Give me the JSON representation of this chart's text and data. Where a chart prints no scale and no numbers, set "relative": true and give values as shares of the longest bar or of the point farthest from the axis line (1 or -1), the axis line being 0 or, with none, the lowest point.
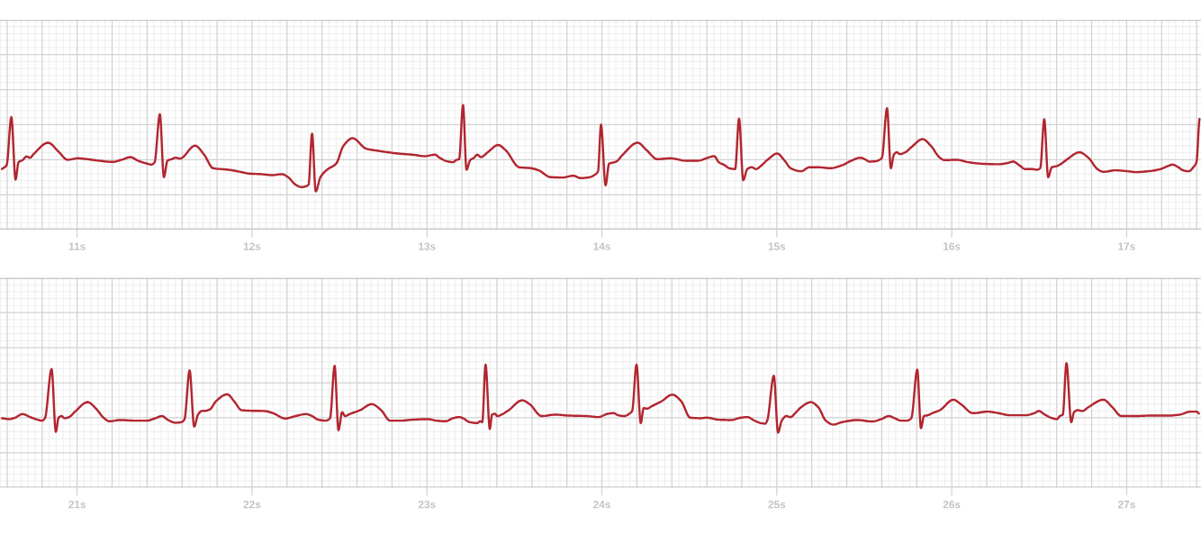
{
  "chart_data": [
    {
      "type": "line",
      "relative": true,
      "grid": true,
      "tick_labels": "x",
      "xlim": [
        10.559,
        17.425
      ],
      "xticks": [
        {
          "value": 11,
          "label": "11s"
        },
        {
          "value": 12,
          "label": "12s"
        },
        {
          "value": 13,
          "label": "13s"
        },
        {
          "value": 14,
          "label": "14s"
        },
        {
          "value": 15,
          "label": "15s"
        },
        {
          "value": 16,
          "label": "16s"
        },
        {
          "value": 17,
          "label": "17s"
        }
      ],
      "x": [
        10.565,
        10.585,
        10.597,
        10.624,
        10.648,
        10.665,
        10.688,
        10.71,
        10.731,
        10.751,
        10.834,
        10.894,
        10.945,
        11.005,
        11.057,
        11.125,
        11.202,
        11.254,
        11.305,
        11.348,
        11.4,
        11.425,
        11.443,
        11.473,
        11.496,
        11.516,
        11.54,
        11.563,
        11.588,
        11.674,
        11.726,
        11.777,
        11.863,
        11.932,
        11.983,
        12.052,
        12.112,
        12.172,
        12.206,
        12.249,
        12.283,
        12.309,
        12.323,
        12.343,
        12.364,
        12.391,
        12.429,
        12.481,
        12.523,
        12.575,
        12.652,
        12.721,
        12.849,
        12.918,
        12.986,
        13.046,
        13.072,
        13.115,
        13.149,
        13.166,
        13.184,
        13.206,
        13.226,
        13.247,
        13.269,
        13.287,
        13.309,
        13.347,
        13.407,
        13.45,
        13.527,
        13.595,
        13.638,
        13.707,
        13.775,
        13.836,
        13.878,
        13.93,
        13.964,
        13.978,
        13.995,
        14.021,
        14.041,
        14.059,
        14.084,
        14.119,
        14.204,
        14.256,
        14.316,
        14.393,
        14.479,
        14.547,
        14.616,
        14.642,
        14.668,
        14.702,
        14.728,
        14.762,
        14.784,
        14.808,
        14.831,
        14.856,
        14.882,
        14.908,
        14.951,
        15.002,
        15.045,
        15.079,
        15.139,
        15.186,
        15.237,
        15.306,
        15.374,
        15.426,
        15.477,
        15.503,
        15.529,
        15.563,
        15.584,
        15.601,
        15.63,
        15.652,
        15.669,
        15.686,
        15.704,
        15.735,
        15.769,
        15.834,
        15.88,
        15.932,
        15.958,
        16.026,
        16.095,
        16.163,
        16.266,
        16.318,
        16.352,
        16.386,
        16.421,
        16.455,
        16.489,
        16.506,
        16.529,
        16.551,
        16.572,
        16.601,
        16.627,
        16.661,
        16.73,
        16.781,
        16.833,
        16.867,
        16.935,
        17.004,
        17.056,
        17.124,
        17.193,
        17.236,
        17.261,
        17.296,
        17.321,
        17.356,
        17.381,
        17.399,
        17.418
      ],
      "series": [
        {
          "color": "#b22530",
          "values": [
            0.258,
            0.279,
            0.303,
            0.861,
            0.136,
            0.338,
            0.362,
            0.404,
            0.39,
            0.432,
            0.564,
            0.46,
            0.366,
            0.383,
            0.373,
            0.355,
            0.341,
            0.366,
            0.397,
            0.355,
            0.321,
            0.31,
            0.338,
            0.895,
            0.164,
            0.355,
            0.373,
            0.39,
            0.38,
            0.53,
            0.425,
            0.268,
            0.251,
            0.226,
            0.206,
            0.199,
            0.188,
            0.199,
            0.164,
            0.077,
            0.049,
            0.059,
            0.077,
            0.669,
            0,
            0.164,
            0.251,
            0.321,
            0.53,
            0.617,
            0.495,
            0.47,
            0.436,
            0.425,
            0.408,
            0.425,
            0.39,
            0.348,
            0.338,
            0.362,
            0.373,
            1,
            0.251,
            0.362,
            0.39,
            0.425,
            0.397,
            0.453,
            0.537,
            0.477,
            0.279,
            0.268,
            0.244,
            0.164,
            0.16,
            0.181,
            0.153,
            0.164,
            0.199,
            0.233,
            0.774,
            0.07,
            0.321,
            0.331,
            0.348,
            0.425,
            0.564,
            0.477,
            0.373,
            0.383,
            0.355,
            0.355,
            0.397,
            0.408,
            0.338,
            0.303,
            0.268,
            0.258,
            0.843,
            0.129,
            0.258,
            0.279,
            0.258,
            0.293,
            0.373,
            0.439,
            0.355,
            0.268,
            0.233,
            0.279,
            0.279,
            0.268,
            0.303,
            0.355,
            0.39,
            0.373,
            0.345,
            0.348,
            0.362,
            0.39,
            0.965,
            0.268,
            0.425,
            0.453,
            0.432,
            0.453,
            0.512,
            0.606,
            0.53,
            0.39,
            0.362,
            0.366,
            0.338,
            0.321,
            0.314,
            0.328,
            0.345,
            0.303,
            0.258,
            0.258,
            0.251,
            0.268,
            0.836,
            0.164,
            0.279,
            0.293,
            0.321,
            0.373,
            0.453,
            0.39,
            0.258,
            0.226,
            0.244,
            0.233,
            0.223,
            0.233,
            0.258,
            0.293,
            0.31,
            0.279,
            0.244,
            0.233,
            0.279,
            0.338,
            0.85
          ]
        }
      ]
    },
    {
      "type": "line",
      "relative": true,
      "grid": true,
      "tick_labels": "x",
      "xlim": [
        20.559,
        27.425
      ],
      "xticks": [
        {
          "value": 21,
          "label": "21s"
        },
        {
          "value": 22,
          "label": "22s"
        },
        {
          "value": 23,
          "label": "23s"
        },
        {
          "value": 24,
          "label": "24s"
        },
        {
          "value": 25,
          "label": "25s"
        },
        {
          "value": 26,
          "label": "26s"
        },
        {
          "value": 27,
          "label": "27s"
        }
      ],
      "x": [
        20.565,
        20.611,
        20.645,
        20.688,
        20.731,
        20.774,
        20.799,
        20.816,
        20.854,
        20.878,
        20.894,
        20.911,
        20.928,
        20.954,
        20.988,
        21.06,
        21.108,
        21.151,
        21.185,
        21.245,
        21.331,
        21.4,
        21.443,
        21.485,
        21.52,
        21.563,
        21.597,
        21.614,
        21.643,
        21.669,
        21.691,
        21.712,
        21.734,
        21.76,
        21.794,
        21.858,
        21.897,
        21.94,
        22.0,
        22.069,
        22.12,
        22.189,
        22.249,
        22.309,
        22.343,
        22.378,
        22.42,
        22.446,
        22.472,
        22.494,
        22.515,
        22.532,
        22.558,
        22.618,
        22.683,
        22.738,
        22.789,
        22.849,
        22.918,
        23.003,
        23.055,
        23.106,
        23.149,
        23.184,
        23.209,
        23.244,
        23.287,
        23.304,
        23.316,
        23.335,
        23.359,
        23.372,
        23.389,
        23.401,
        23.432,
        23.467,
        23.544,
        23.587,
        23.655,
        23.733,
        23.81,
        23.913,
        23.981,
        24.033,
        24.067,
        24.093,
        24.127,
        24.161,
        24.173,
        24.198,
        24.222,
        24.239,
        24.256,
        24.29,
        24.342,
        24.402,
        24.453,
        24.505,
        24.565,
        24.599,
        24.668,
        24.736,
        24.796,
        24.831,
        24.873,
        24.908,
        24.933,
        24.945,
        24.983,
        25.007,
        25.028,
        25.054,
        25.079,
        25.105,
        25.139,
        25.194,
        25.237,
        25.28,
        25.323,
        25.374,
        25.46,
        25.546,
        25.597,
        25.64,
        25.674,
        25.709,
        25.743,
        25.769,
        25.803,
        25.824,
        25.841,
        25.863,
        25.889,
        25.932,
        26.009,
        26.052,
        26.121,
        26.206,
        26.266,
        26.335,
        26.421,
        26.472,
        26.498,
        26.532,
        26.567,
        26.601,
        26.618,
        26.635,
        26.656,
        26.683,
        26.699,
        26.721,
        26.747,
        26.781,
        26.867,
        26.918,
        26.97,
        27.038,
        27.141,
        27.244,
        27.304,
        27.364,
        27.399,
        27.418
      ],
      "series": [
        {
          "color": "#b22530",
          "values": [
            0.207,
            0.194,
            0.215,
            0.267,
            0.224,
            0.186,
            0.172,
            0.207,
            0.915,
            0.012,
            0.215,
            0.238,
            0.207,
            0.224,
            0.302,
            0.439,
            0.345,
            0.215,
            0.163,
            0.181,
            0.172,
            0.172,
            0.203,
            0.238,
            0.181,
            0.142,
            0.151,
            0.194,
            0.897,
            0.087,
            0.259,
            0.311,
            0.314,
            0.337,
            0.453,
            0.552,
            0.453,
            0.323,
            0.314,
            0.311,
            0.28,
            0.203,
            0.238,
            0.267,
            0.238,
            0.186,
            0.172,
            0.207,
            0.962,
            0.035,
            0.293,
            0.238,
            0.267,
            0.323,
            0.41,
            0.323,
            0.172,
            0.172,
            0.186,
            0.194,
            0.172,
            0.163,
            0.207,
            0.224,
            0.203,
            0.151,
            0.137,
            0.163,
            0.151,
            0.979,
            0.052,
            0.259,
            0.271,
            0.238,
            0.267,
            0.323,
            0.465,
            0.41,
            0.238,
            0.259,
            0.245,
            0.238,
            0.224,
            0.271,
            0.28,
            0.25,
            0.238,
            0.28,
            0.311,
            0.979,
            0.137,
            0.354,
            0.345,
            0.387,
            0.453,
            0.547,
            0.453,
            0.215,
            0.207,
            0.215,
            0.186,
            0.181,
            0.215,
            0.224,
            0.172,
            0.137,
            0.129,
            0.172,
            0.819,
            0,
            0.172,
            0.238,
            0.224,
            0.28,
            0.366,
            0.439,
            0.366,
            0.172,
            0.116,
            0.151,
            0.181,
            0.16,
            0.194,
            0.238,
            0.207,
            0.172,
            0.172,
            0.207,
            0.906,
            0.064,
            0.238,
            0.25,
            0.28,
            0.323,
            0.474,
            0.41,
            0.28,
            0.302,
            0.28,
            0.25,
            0.25,
            0.28,
            0.311,
            0.259,
            0.215,
            0.194,
            0.238,
            0.259,
            1,
            0.151,
            0.293,
            0.323,
            0.311,
            0.366,
            0.474,
            0.366,
            0.238,
            0.238,
            0.245,
            0.245,
            0.259,
            0.302,
            0.302,
            0.271
          ]
        }
      ]
    }
  ]
}
